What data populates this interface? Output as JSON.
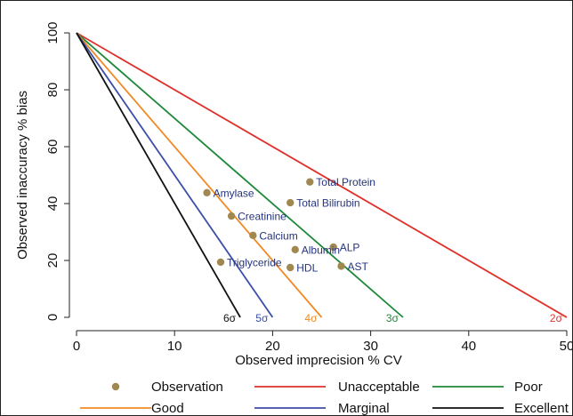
{
  "chart_data": {
    "type": "line",
    "title": "",
    "xlabel": "Observed imprecision % CV",
    "ylabel": "Observed inaccuracy % bias",
    "xlim": [
      0,
      50
    ],
    "ylim": [
      0,
      100
    ],
    "xticks": [
      0,
      10,
      20,
      30,
      40,
      50
    ],
    "yticks": [
      0,
      20,
      40,
      60,
      80,
      100
    ],
    "grid": false,
    "legend_position": "bottom",
    "series": [
      {
        "name": "Unacceptable",
        "color": "#e0302a",
        "label": "2σ",
        "x": [
          0,
          50
        ],
        "y": [
          100,
          0
        ]
      },
      {
        "name": "Poor",
        "color": "#1f8a3c",
        "label": "3σ",
        "x": [
          0,
          33.3
        ],
        "y": [
          100,
          0
        ]
      },
      {
        "name": "Good",
        "color": "#f08a24",
        "label": "4σ",
        "x": [
          0,
          25
        ],
        "y": [
          100,
          0
        ]
      },
      {
        "name": "Marginal",
        "color": "#3b4ea8",
        "label": "5σ",
        "x": [
          0,
          20
        ],
        "y": [
          100,
          0
        ]
      },
      {
        "name": "Excellent",
        "color": "#111111",
        "label": "6σ",
        "x": [
          0,
          16.7
        ],
        "y": [
          100,
          0
        ]
      }
    ],
    "observations": {
      "name": "Observation",
      "color": "#a08850",
      "points": [
        {
          "label": "Total Protein",
          "x": 23.8,
          "y": 47.6
        },
        {
          "label": "Amylase",
          "x": 13.3,
          "y": 43.8
        },
        {
          "label": "Total Bilirubin",
          "x": 21.8,
          "y": 40.3
        },
        {
          "label": "Creatinine",
          "x": 15.8,
          "y": 35.6
        },
        {
          "label": "Calcium",
          "x": 18.0,
          "y": 28.8
        },
        {
          "label": "ALP",
          "x": 26.2,
          "y": 24.7
        },
        {
          "label": "Albumin",
          "x": 22.3,
          "y": 23.8
        },
        {
          "label": "Triglyceride",
          "x": 14.7,
          "y": 19.4
        },
        {
          "label": "AST",
          "x": 27.0,
          "y": 18.0
        },
        {
          "label": "HDL",
          "x": 21.8,
          "y": 17.5
        }
      ]
    }
  }
}
